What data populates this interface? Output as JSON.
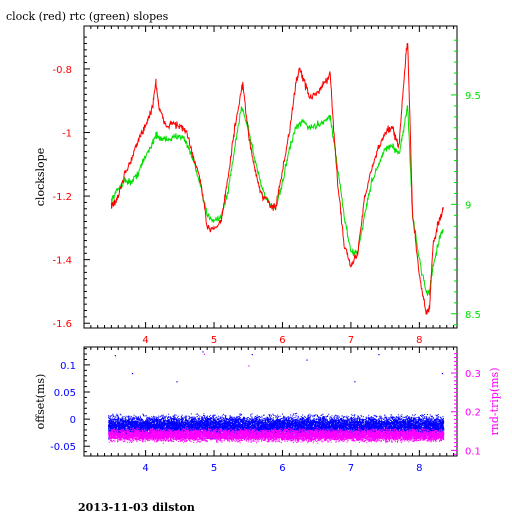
{
  "title": "clock (red) rtc (green) slopes",
  "footer": "2013-11-03 dilston",
  "colors": {
    "red": "#ff0000",
    "green": "#00e000",
    "blue": "#0000ff",
    "magenta": "#ff00ff",
    "black": "#000000"
  },
  "chart_data": [
    {
      "type": "line",
      "title": "clock (red) rtc (green) slopes",
      "ylabel": "clockslope",
      "xlim": [
        3.1,
        8.55
      ],
      "ylim": [
        -1.615,
        -0.665
      ],
      "y2lim": [
        8.435,
        9.815
      ],
      "xticks": [
        "4",
        "5",
        "6",
        "7",
        "8"
      ],
      "yticks": [
        "-0.8",
        "-1",
        "-1.2",
        "-1.4",
        "-1.6"
      ],
      "y2ticks": [
        "9.5",
        "9",
        "8.5"
      ],
      "series": [
        {
          "name": "clock",
          "color": "#ff0000",
          "axis": "left",
          "x": [
            3.5,
            3.55,
            3.6,
            3.7,
            3.8,
            3.9,
            4.0,
            4.1,
            4.15,
            4.2,
            4.3,
            4.4,
            4.5,
            4.6,
            4.7,
            4.8,
            4.9,
            5.0,
            5.1,
            5.2,
            5.3,
            5.4,
            5.42,
            5.5,
            5.6,
            5.7,
            5.8,
            5.9,
            6.0,
            6.1,
            6.2,
            6.25,
            6.3,
            6.4,
            6.5,
            6.6,
            6.7,
            6.75,
            6.8,
            6.9,
            7.0,
            7.1,
            7.2,
            7.3,
            7.4,
            7.5,
            7.6,
            7.7,
            7.8,
            7.83,
            7.9,
            8.0,
            8.1,
            8.15,
            8.2,
            8.3,
            8.35
          ],
          "values": [
            -1.23,
            -1.22,
            -1.2,
            -1.13,
            -1.08,
            -1.02,
            -0.98,
            -0.92,
            -0.84,
            -0.93,
            -0.98,
            -0.97,
            -0.98,
            -1.0,
            -1.08,
            -1.15,
            -1.3,
            -1.3,
            -1.28,
            -1.15,
            -0.99,
            -0.87,
            -0.85,
            -1.0,
            -1.12,
            -1.2,
            -1.22,
            -1.24,
            -1.12,
            -1.0,
            -0.84,
            -0.8,
            -0.83,
            -0.89,
            -0.88,
            -0.85,
            -0.82,
            -1.0,
            -1.14,
            -1.35,
            -1.42,
            -1.38,
            -1.2,
            -1.12,
            -1.05,
            -1.0,
            -0.98,
            -1.05,
            -0.76,
            -0.72,
            -1.25,
            -1.45,
            -1.57,
            -1.55,
            -1.35,
            -1.27,
            -1.24
          ]
        },
        {
          "name": "rtc",
          "color": "#00e000",
          "axis": "right",
          "x": [
            3.5,
            3.6,
            3.7,
            3.8,
            3.9,
            4.0,
            4.1,
            4.15,
            4.2,
            4.3,
            4.4,
            4.5,
            4.6,
            4.7,
            4.8,
            4.9,
            5.0,
            5.1,
            5.2,
            5.3,
            5.4,
            5.5,
            5.6,
            5.7,
            5.8,
            5.9,
            6.0,
            6.1,
            6.2,
            6.3,
            6.4,
            6.5,
            6.6,
            6.7,
            6.8,
            6.9,
            7.0,
            7.1,
            7.2,
            7.3,
            7.4,
            7.5,
            7.6,
            7.7,
            7.8,
            7.83,
            7.9,
            8.0,
            8.1,
            8.15,
            8.2,
            8.3,
            8.35
          ],
          "values": [
            9.02,
            9.07,
            9.11,
            9.1,
            9.15,
            9.22,
            9.28,
            9.32,
            9.3,
            9.3,
            9.3,
            9.32,
            9.28,
            9.2,
            9.08,
            8.95,
            8.93,
            8.94,
            9.05,
            9.25,
            9.45,
            9.35,
            9.2,
            9.08,
            9.0,
            8.98,
            9.1,
            9.25,
            9.35,
            9.38,
            9.35,
            9.36,
            9.38,
            9.4,
            9.18,
            8.95,
            8.78,
            8.78,
            8.95,
            9.1,
            9.18,
            9.25,
            9.27,
            9.22,
            9.4,
            9.45,
            8.95,
            8.75,
            8.6,
            8.6,
            8.72,
            8.85,
            8.88
          ]
        }
      ]
    },
    {
      "type": "scatter",
      "ylabel": "offset(ms)",
      "y2label": "rnd-trip(ms)",
      "xlim": [
        3.1,
        8.55
      ],
      "ylim": [
        -0.068,
        0.133
      ],
      "y2lim": [
        0.0855,
        0.3673
      ],
      "xticks": [
        "4",
        "5",
        "6",
        "7",
        "8"
      ],
      "yticks": [
        "0.1",
        "0.05",
        "0",
        "-0.05"
      ],
      "y2ticks": [
        "0.3",
        "0.2",
        "0.1"
      ],
      "series": [
        {
          "name": "offset",
          "color": "#0000ff",
          "axis": "left",
          "x_range": [
            3.45,
            8.35
          ],
          "band": [
            -0.037,
            0.012
          ],
          "outliers": [
            [
              3.55,
              0.118
            ],
            [
              3.8,
              0.085
            ],
            [
              4.45,
              0.07
            ],
            [
              4.83,
              0.125
            ],
            [
              5.55,
              0.12
            ],
            [
              6.35,
              0.11
            ],
            [
              7.05,
              0.07
            ],
            [
              7.4,
              0.12
            ],
            [
              8.33,
              0.085
            ]
          ]
        },
        {
          "name": "rnd-trip",
          "color": "#ff00ff",
          "axis": "right",
          "x_range": [
            3.45,
            8.35
          ],
          "band": [
            0.12,
            0.16
          ],
          "outliers": [
            [
              4.85,
              0.35
            ],
            [
              5.5,
              0.32
            ]
          ]
        }
      ]
    }
  ]
}
